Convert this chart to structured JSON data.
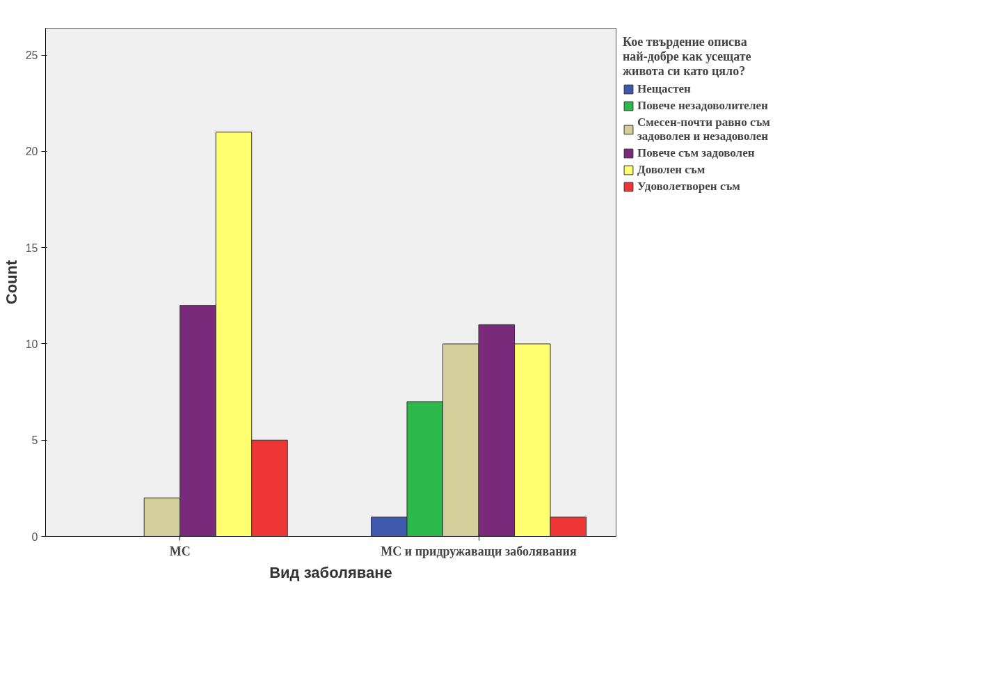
{
  "chart_data": {
    "type": "bar",
    "xlabel": "Вид заболяване",
    "ylabel": "Count",
    "legend_title": "Кое твърдение описва най-добре как усещате живота си като цяло?",
    "categories": [
      "МС",
      "МС и придружаващи заболявания"
    ],
    "series": [
      {
        "name": "Нещастен",
        "color": "#3e58ac",
        "values": [
          null,
          1
        ]
      },
      {
        "name": "Повече незадоволителен",
        "color": "#2db84c",
        "values": [
          null,
          7
        ]
      },
      {
        "name": "Смесен-почти равно съм задоволен и незадоволен",
        "color": "#d3ce9a",
        "values": [
          2,
          10
        ]
      },
      {
        "name": "Повече съм задоволен",
        "color": "#7a2a7a",
        "values": [
          12,
          11
        ]
      },
      {
        "name": "Доволен съм",
        "color": "#ffff70",
        "values": [
          21,
          10
        ]
      },
      {
        "name": "Удоволетворен съм",
        "color": "#ef3636",
        "values": [
          5,
          1
        ]
      }
    ],
    "ylim": [
      0,
      26.4
    ],
    "yticks": [
      0,
      5,
      10,
      15,
      20,
      25
    ],
    "grid": false,
    "legend": "right"
  }
}
